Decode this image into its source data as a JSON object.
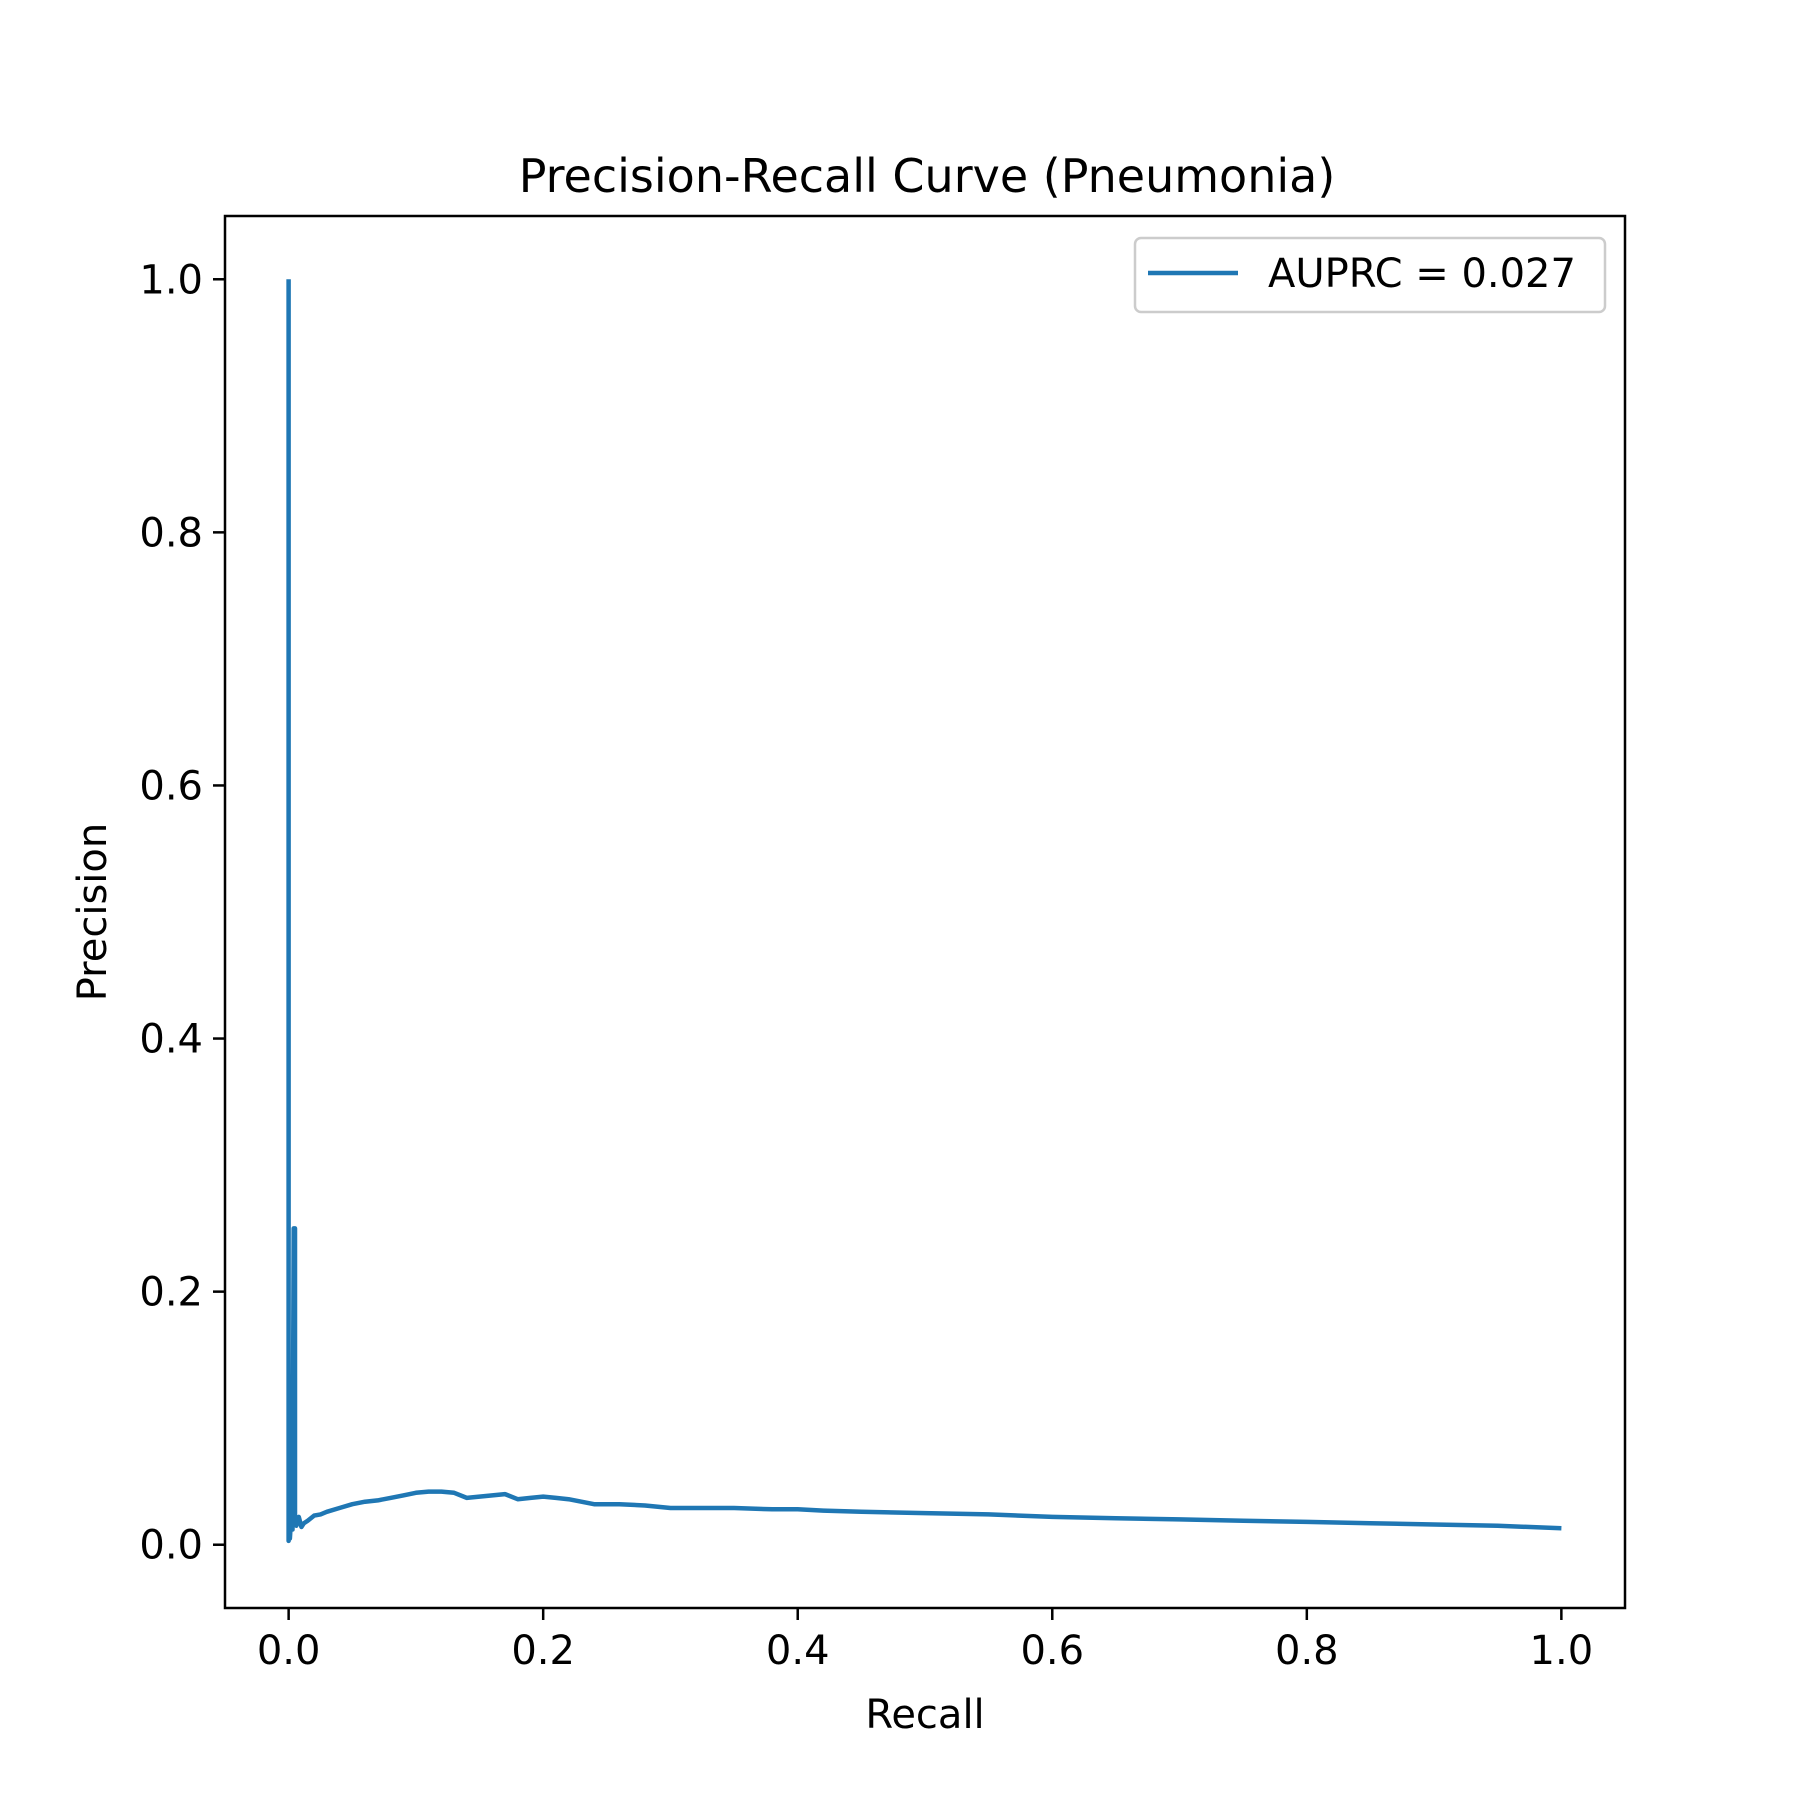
{
  "chart_data": {
    "type": "line",
    "title": "Precision-Recall Curve (Pneumonia)",
    "xlabel": "Recall",
    "ylabel": "Precision",
    "xlim": [
      -0.05,
      1.05
    ],
    "ylim": [
      -0.05,
      1.05
    ],
    "xticks": [
      0.0,
      0.2,
      0.4,
      0.6,
      0.8,
      1.0
    ],
    "xtick_labels": [
      "0.0",
      "0.2",
      "0.4",
      "0.6",
      "0.8",
      "1.0"
    ],
    "yticks": [
      0.0,
      0.2,
      0.4,
      0.6,
      0.8,
      1.0
    ],
    "ytick_labels": [
      "0.0",
      "0.2",
      "0.4",
      "0.6",
      "0.8",
      "1.0"
    ],
    "grid": false,
    "legend": {
      "position": "top-right"
    },
    "series": [
      {
        "name": "AUPRC = 0.027",
        "color": "#1f77b4",
        "x": [
          0.0,
          0.0,
          0.0005,
          0.001,
          0.002,
          0.003,
          0.004,
          0.005,
          0.005,
          0.006,
          0.008,
          0.01,
          0.012,
          0.015,
          0.02,
          0.025,
          0.03,
          0.04,
          0.05,
          0.06,
          0.07,
          0.08,
          0.09,
          0.1,
          0.11,
          0.12,
          0.13,
          0.14,
          0.15,
          0.16,
          0.17,
          0.18,
          0.19,
          0.2,
          0.21,
          0.22,
          0.24,
          0.26,
          0.28,
          0.3,
          0.32,
          0.35,
          0.38,
          0.4,
          0.42,
          0.45,
          0.5,
          0.55,
          0.6,
          0.65,
          0.7,
          0.75,
          0.8,
          0.85,
          0.9,
          0.95,
          1.0
        ],
        "y": [
          1.0,
          0.003,
          0.03,
          0.005,
          0.022,
          0.012,
          0.25,
          0.25,
          0.018,
          0.015,
          0.022,
          0.014,
          0.017,
          0.019,
          0.023,
          0.024,
          0.026,
          0.029,
          0.032,
          0.034,
          0.035,
          0.037,
          0.039,
          0.041,
          0.042,
          0.042,
          0.041,
          0.037,
          0.038,
          0.039,
          0.04,
          0.036,
          0.037,
          0.038,
          0.037,
          0.036,
          0.032,
          0.032,
          0.031,
          0.029,
          0.029,
          0.029,
          0.028,
          0.028,
          0.027,
          0.026,
          0.025,
          0.024,
          0.022,
          0.021,
          0.02,
          0.019,
          0.018,
          0.017,
          0.016,
          0.015,
          0.013
        ]
      }
    ]
  }
}
